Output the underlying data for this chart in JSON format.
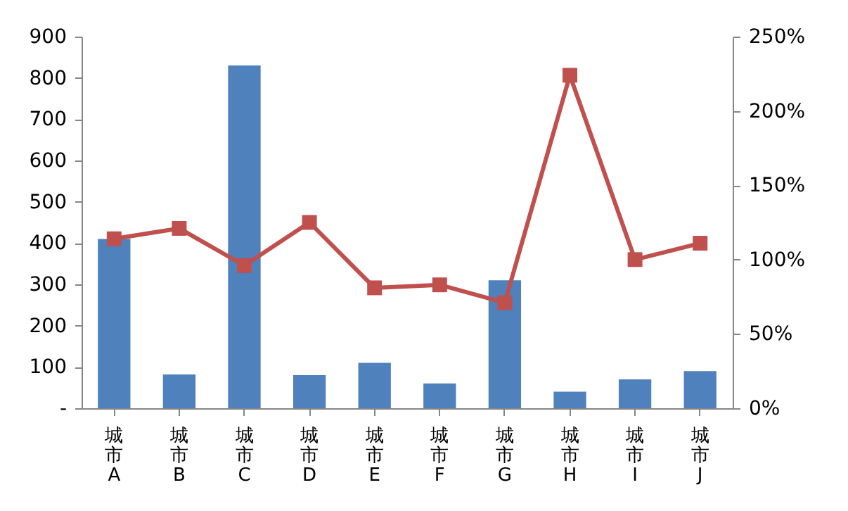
{
  "chart_data": {
    "type": "bar",
    "categories": [
      "城市A",
      "城市B",
      "城市C",
      "城市D",
      "城市E",
      "城市F",
      "城市G",
      "城市H",
      "城市I",
      "城市J"
    ],
    "series": [
      {
        "color": "#4f81bd",
        "values": [
          410,
          82,
          830,
          80,
          110,
          60,
          310,
          40,
          70,
          90
        ]
      },
      {
        "type": "line",
        "axis": "y2",
        "color": "#c0504d",
        "marker": "square",
        "values": [
          114,
          121,
          96,
          125,
          81,
          83,
          71,
          224,
          100,
          111
        ]
      }
    ],
    "ylim": [
      0,
      900
    ],
    "yticks": [
      {
        "value": 0,
        "label": "-"
      },
      100,
      200,
      300,
      400,
      500,
      600,
      700,
      800,
      900
    ],
    "y2lim": [
      0,
      250
    ],
    "y2ticks": [
      {
        "value": 0,
        "label": "0%"
      },
      {
        "value": 50,
        "label": "50%"
      },
      {
        "value": 100,
        "label": "100%"
      },
      {
        "value": 150,
        "label": "150%"
      },
      {
        "value": 200,
        "label": "200%"
      },
      {
        "value": 250,
        "label": "250%"
      }
    ],
    "grid": false
  }
}
